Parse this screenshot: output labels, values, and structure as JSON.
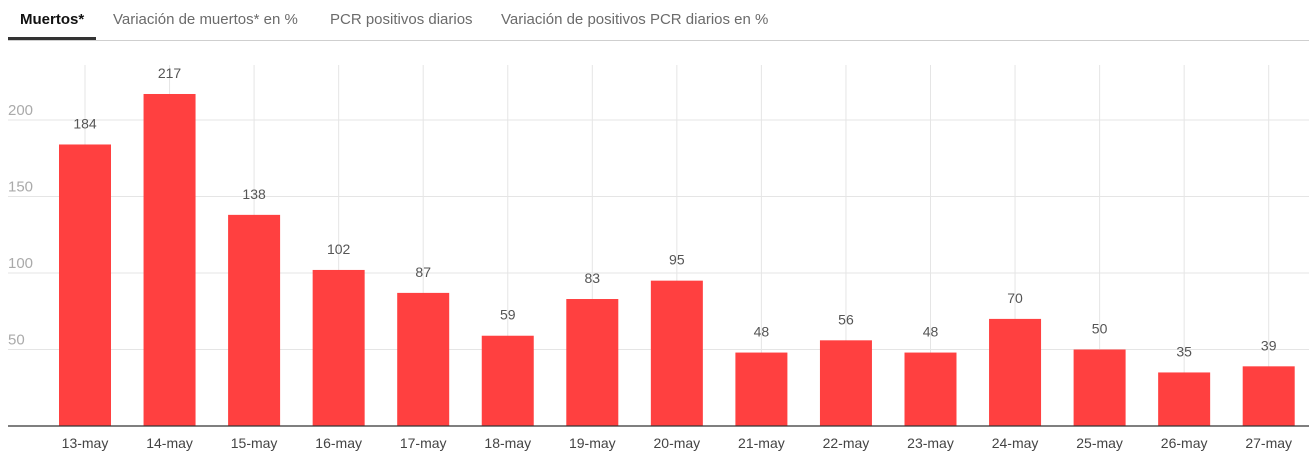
{
  "tabs": [
    {
      "label": "Muertos*",
      "active": true
    },
    {
      "label": "Variación de muertos* en %",
      "active": false
    },
    {
      "label": "PCR positivos diarios",
      "active": false
    },
    {
      "label": "Variación de positivos PCR diarios en %",
      "active": false
    }
  ],
  "colors": {
    "bar": "#ff4040",
    "grid": "#e5e5e5",
    "axis": "#333333"
  },
  "chart_data": {
    "type": "bar",
    "categories": [
      "13-may",
      "14-may",
      "15-may",
      "16-may",
      "17-may",
      "18-may",
      "19-may",
      "20-may",
      "21-may",
      "22-may",
      "23-may",
      "24-may",
      "25-may",
      "26-may",
      "27-may"
    ],
    "values": [
      184,
      217,
      138,
      102,
      87,
      59,
      83,
      95,
      48,
      56,
      48,
      70,
      50,
      35,
      39
    ],
    "yticks": [
      50,
      100,
      150,
      200
    ],
    "ylim": [
      0,
      240
    ],
    "grid": true,
    "data_labels": true
  }
}
